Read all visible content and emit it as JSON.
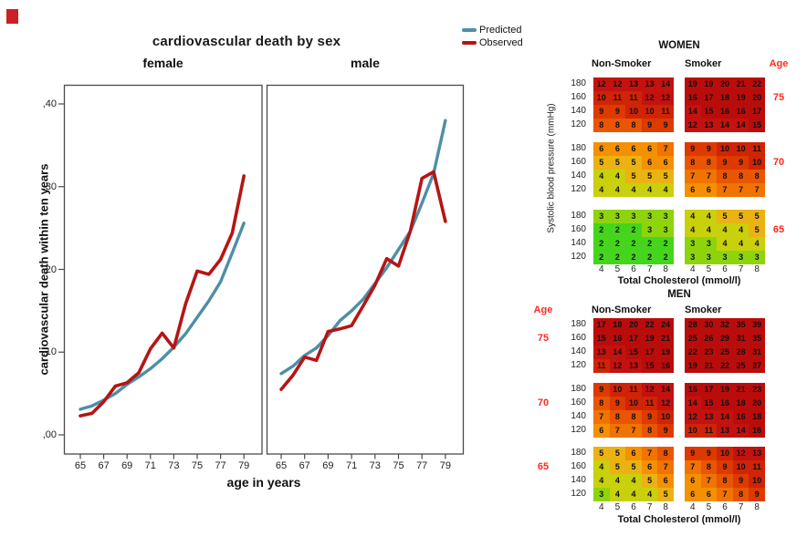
{
  "figure": {
    "colors": {
      "predicted": "#4d8fa6",
      "observed": "#b51514",
      "frame": "#4a4a4a",
      "age_red": "#fb2b20",
      "marker_red": "#cc2027"
    }
  },
  "chart_data": [
    {
      "type": "line",
      "title": "cardiovascular death by sex",
      "xlabel": "age in years",
      "ylabel": "cardiovascular death within ten years",
      "series_names": [
        "Predicted",
        "Observed"
      ],
      "x": [
        65,
        66,
        67,
        68,
        69,
        70,
        71,
        72,
        73,
        74,
        75,
        76,
        77,
        78,
        79
      ],
      "x_ticks": [
        65,
        67,
        69,
        71,
        73,
        75,
        77,
        79
      ],
      "y_ticks": [
        ",00",
        ",10",
        ",20",
        ",30",
        ",40"
      ],
      "y_tick_values": [
        0.0,
        0.1,
        0.2,
        0.3,
        0.4
      ],
      "ylim": [
        -0.023,
        0.423
      ],
      "panels": [
        {
          "label": "female",
          "predicted": [
            0.031,
            0.035,
            0.042,
            0.05,
            0.061,
            0.07,
            0.08,
            0.092,
            0.106,
            0.122,
            0.142,
            0.162,
            0.185,
            0.22,
            0.256
          ],
          "observed": [
            0.023,
            0.026,
            0.04,
            0.059,
            0.063,
            0.075,
            0.104,
            0.123,
            0.105,
            0.158,
            0.198,
            0.194,
            0.212,
            0.244,
            0.313
          ]
        },
        {
          "label": "male",
          "predicted": [
            0.074,
            0.083,
            0.096,
            0.105,
            0.12,
            0.138,
            0.15,
            0.164,
            0.183,
            0.202,
            0.224,
            0.246,
            0.28,
            0.316,
            0.38
          ],
          "observed": [
            0.055,
            0.072,
            0.094,
            0.09,
            0.125,
            0.128,
            0.132,
            0.156,
            0.181,
            0.213,
            0.204,
            0.246,
            0.31,
            0.318,
            0.258
          ]
        }
      ]
    },
    {
      "type": "heatmap",
      "title": "WOMEN",
      "age_label": "Age",
      "col_headers": [
        "Non-Smoker",
        "Smoker"
      ],
      "ylabel": "Systolic blood pressure (mmHg)",
      "xlabel": "Total Cholesterol (mmol/l)",
      "bp_rows": [
        "180",
        "160",
        "140",
        "120"
      ],
      "chol_ticks": [
        "4",
        "5",
        "6",
        "7",
        "8"
      ],
      "age_groups": [
        {
          "age": "75",
          "non_smoker": [
            [
              12,
              12,
              13,
              13,
              14
            ],
            [
              10,
              11,
              11,
              12,
              12
            ],
            [
              9,
              9,
              10,
              10,
              11
            ],
            [
              8,
              8,
              8,
              9,
              9
            ]
          ],
          "smoker": [
            [
              19,
              19,
              20,
              21,
              22
            ],
            [
              16,
              17,
              18,
              19,
              20
            ],
            [
              14,
              15,
              16,
              16,
              17
            ],
            [
              12,
              13,
              14,
              14,
              15
            ]
          ]
        },
        {
          "age": "70",
          "non_smoker": [
            [
              6,
              6,
              6,
              6,
              7
            ],
            [
              5,
              5,
              5,
              6,
              6
            ],
            [
              4,
              4,
              5,
              5,
              5
            ],
            [
              4,
              4,
              4,
              4,
              4
            ]
          ],
          "smoker": [
            [
              9,
              9,
              10,
              10,
              11
            ],
            [
              8,
              8,
              9,
              9,
              10
            ],
            [
              7,
              7,
              8,
              8,
              8
            ],
            [
              6,
              6,
              7,
              7,
              7
            ]
          ]
        },
        {
          "age": "65",
          "non_smoker": [
            [
              3,
              3,
              3,
              3,
              3
            ],
            [
              2,
              2,
              2,
              3,
              3
            ],
            [
              2,
              2,
              2,
              2,
              2
            ],
            [
              2,
              2,
              2,
              2,
              2
            ]
          ],
          "smoker": [
            [
              4,
              4,
              5,
              5,
              5
            ],
            [
              4,
              4,
              4,
              4,
              5
            ],
            [
              3,
              3,
              4,
              4,
              4
            ],
            [
              3,
              3,
              3,
              3,
              3
            ]
          ]
        }
      ]
    },
    {
      "type": "heatmap",
      "title": "MEN",
      "age_label": "Age",
      "col_headers": [
        "Non-Smoker",
        "Smoker"
      ],
      "xlabel": "Total Cholesterol (mmol/l)",
      "bp_rows": [
        "180",
        "160",
        "140",
        "120"
      ],
      "chol_ticks": [
        "4",
        "5",
        "6",
        "7",
        "8"
      ],
      "age_groups": [
        {
          "age": "75",
          "non_smoker": [
            [
              17,
              18,
              20,
              22,
              24
            ],
            [
              15,
              16,
              17,
              19,
              21
            ],
            [
              13,
              14,
              15,
              17,
              19
            ],
            [
              11,
              12,
              13,
              15,
              16
            ]
          ],
          "smoker": [
            [
              28,
              30,
              32,
              35,
              39
            ],
            [
              25,
              26,
              29,
              31,
              35
            ],
            [
              22,
              23,
              25,
              28,
              31
            ],
            [
              19,
              21,
              22,
              25,
              27
            ]
          ]
        },
        {
          "age": "70",
          "non_smoker": [
            [
              9,
              10,
              11,
              12,
              14
            ],
            [
              8,
              9,
              10,
              11,
              12
            ],
            [
              7,
              8,
              8,
              9,
              10
            ],
            [
              6,
              7,
              7,
              8,
              9
            ]
          ],
          "smoker": [
            [
              16,
              17,
              19,
              21,
              23
            ],
            [
              14,
              15,
              16,
              18,
              20
            ],
            [
              12,
              13,
              14,
              16,
              18
            ],
            [
              10,
              11,
              13,
              14,
              16
            ]
          ]
        },
        {
          "age": "65",
          "non_smoker": [
            [
              5,
              5,
              6,
              7,
              8
            ],
            [
              4,
              5,
              5,
              6,
              7
            ],
            [
              4,
              4,
              4,
              5,
              6
            ],
            [
              3,
              4,
              4,
              4,
              5
            ]
          ],
          "smoker": [
            [
              9,
              9,
              10,
              12,
              13
            ],
            [
              7,
              8,
              9,
              10,
              11
            ],
            [
              6,
              7,
              8,
              9,
              10
            ],
            [
              6,
              6,
              7,
              8,
              9
            ]
          ]
        }
      ]
    }
  ],
  "risk_palette": [
    {
      "min": 15,
      "color": "#bb0c0c"
    },
    {
      "min": 12,
      "color": "#c31210"
    },
    {
      "min": 10,
      "color": "#cf2406"
    },
    {
      "min": 9,
      "color": "#de3a00"
    },
    {
      "min": 8,
      "color": "#e95502"
    },
    {
      "min": 7,
      "color": "#f17301"
    },
    {
      "min": 6,
      "color": "#f59000"
    },
    {
      "min": 5,
      "color": "#eab313"
    },
    {
      "min": 4,
      "color": "#c9d00c"
    },
    {
      "min": 3,
      "color": "#8ed40d"
    },
    {
      "min": 2,
      "color": "#45d51d"
    }
  ]
}
